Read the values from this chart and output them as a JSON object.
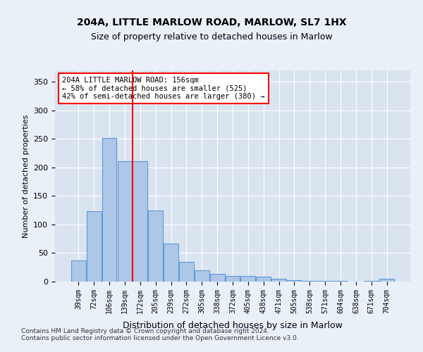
{
  "title": "204A, LITTLE MARLOW ROAD, MARLOW, SL7 1HX",
  "subtitle": "Size of property relative to detached houses in Marlow",
  "xlabel": "Distribution of detached houses by size in Marlow",
  "ylabel": "Number of detached properties",
  "categories": [
    "39sqm",
    "72sqm",
    "106sqm",
    "139sqm",
    "172sqm",
    "205sqm",
    "239sqm",
    "272sqm",
    "305sqm",
    "338sqm",
    "372sqm",
    "405sqm",
    "438sqm",
    "471sqm",
    "505sqm",
    "538sqm",
    "571sqm",
    "604sqm",
    "638sqm",
    "671sqm",
    "704sqm"
  ],
  "values": [
    37,
    123,
    252,
    211,
    211,
    124,
    66,
    35,
    20,
    14,
    10,
    10,
    9,
    5,
    2,
    1,
    1,
    1,
    0,
    1,
    5
  ],
  "bar_color": "#aec6e8",
  "bar_edge_color": "#5b9bd5",
  "red_line_x": 3.5,
  "annotation_text": "204A LITTLE MARLOW ROAD: 156sqm\n← 58% of detached houses are smaller (525)\n42% of semi-detached houses are larger (380) →",
  "ylim": [
    0,
    370
  ],
  "yticks": [
    0,
    50,
    100,
    150,
    200,
    250,
    300,
    350
  ],
  "footer": "Contains HM Land Registry data © Crown copyright and database right 2024.\nContains public sector information licensed under the Open Government Licence v3.0.",
  "bg_color": "#eaf0f8",
  "plot_bg_color": "#d9e4f0"
}
